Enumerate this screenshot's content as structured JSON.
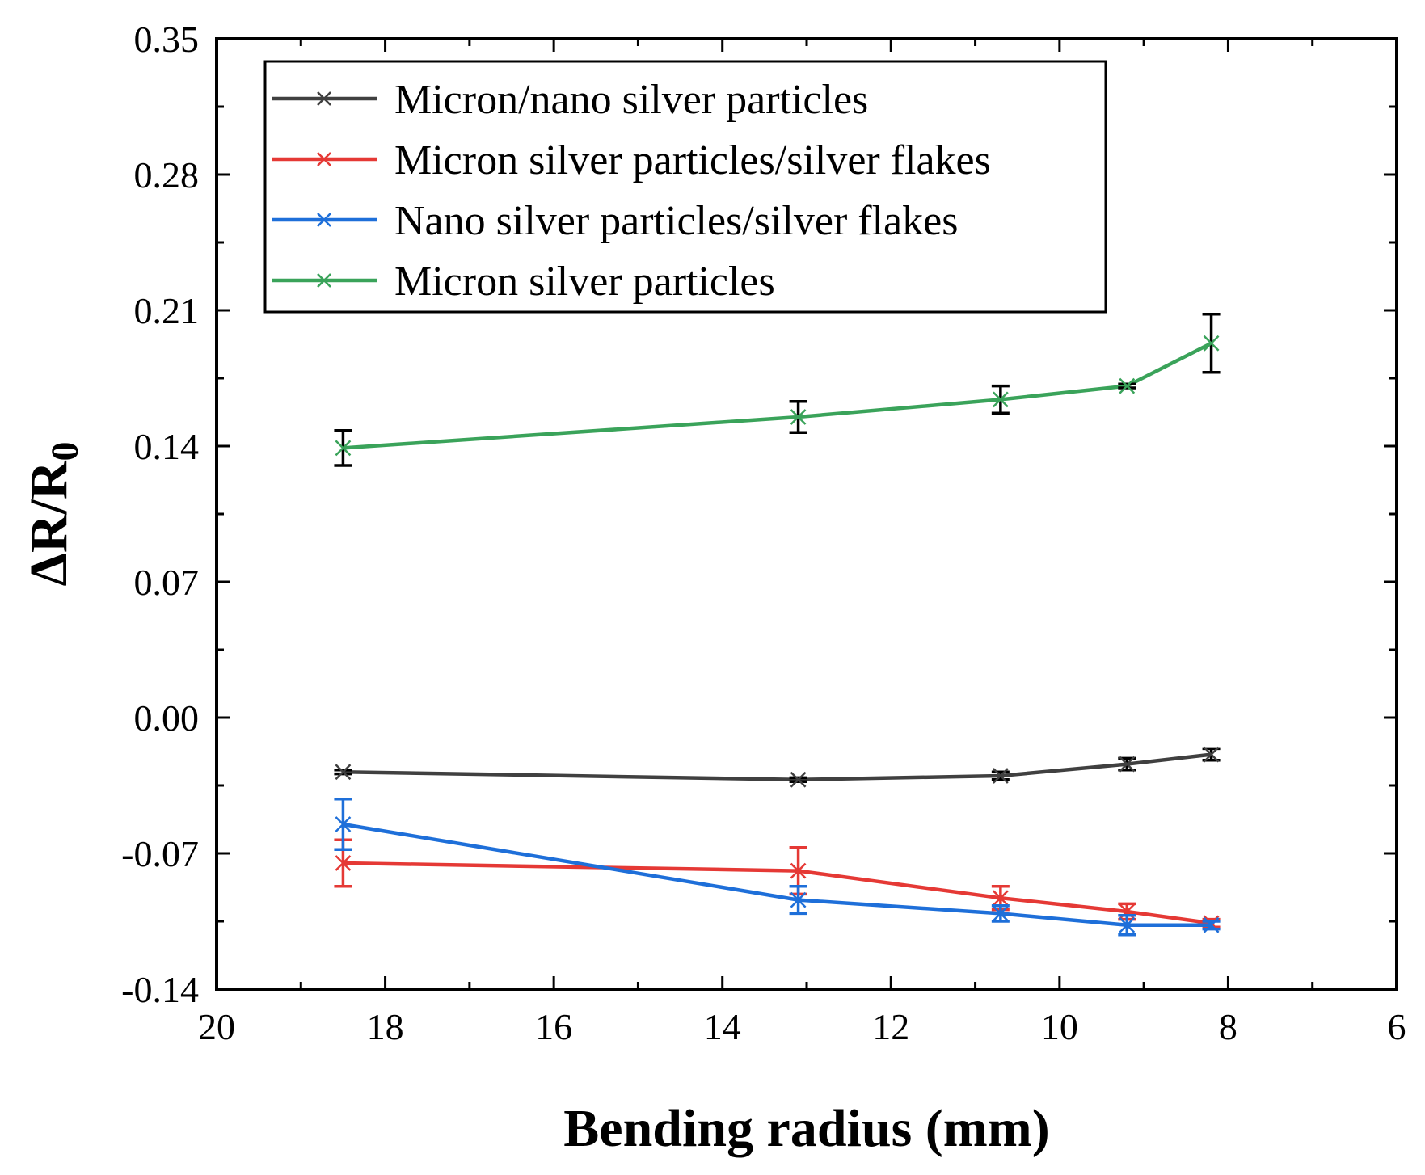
{
  "chart_data": {
    "type": "line",
    "title": "",
    "xlabel": "Bending radius (mm)",
    "ylabel_main": "ΔR/R",
    "ylabel_sub": "0",
    "xlim": [
      20,
      6
    ],
    "ylim": [
      -0.14,
      0.35
    ],
    "x_reversed": true,
    "grid": false,
    "legend_position": "top-left",
    "x_ticks": [
      "20",
      "18",
      "16",
      "14",
      "12",
      "10",
      "8",
      "6"
    ],
    "x_tick_values": [
      20,
      18,
      16,
      14,
      12,
      10,
      8,
      6
    ],
    "y_ticks": [
      "0.35",
      "0.28",
      "0.21",
      "0.14",
      "0.07",
      "0.00",
      "-0.07",
      "-0.14"
    ],
    "y_tick_values": [
      0.35,
      0.28,
      0.21,
      0.14,
      0.07,
      0.0,
      -0.07,
      -0.14
    ],
    "x": [
      18.5,
      13.1,
      10.7,
      9.2,
      8.2
    ],
    "series": [
      {
        "name": "Micron/nano silver particles",
        "color": "#404040",
        "marker_color": "#404040",
        "error_color": "#000000",
        "values": [
          -0.028,
          -0.032,
          -0.03,
          -0.024,
          -0.019
        ],
        "errors": [
          0.001,
          0.001,
          0.002,
          0.003,
          0.003
        ]
      },
      {
        "name": "Micron silver particles/silver flakes",
        "color": "#e53935",
        "marker_color": "#e53935",
        "error_color": "#e53935",
        "values": [
          -0.075,
          -0.079,
          -0.093,
          -0.1,
          -0.106
        ],
        "errors": [
          0.012,
          0.012,
          0.006,
          0.004,
          0.002
        ]
      },
      {
        "name": "Nano silver particles/silver flakes",
        "color": "#1e6fd9",
        "marker_color": "#1e6fd9",
        "error_color": "#1e6fd9",
        "values": [
          -0.055,
          -0.094,
          -0.101,
          -0.107,
          -0.107
        ],
        "errors": [
          0.013,
          0.007,
          0.004,
          0.005,
          0.002
        ]
      },
      {
        "name": "Micron silver particles",
        "color": "#3aa35a",
        "marker_color": "#3aa35a",
        "error_color": "#000000",
        "values": [
          0.139,
          0.155,
          0.164,
          0.171,
          0.193
        ],
        "errors": [
          0.009,
          0.008,
          0.007,
          0.001,
          0.015
        ]
      }
    ]
  }
}
